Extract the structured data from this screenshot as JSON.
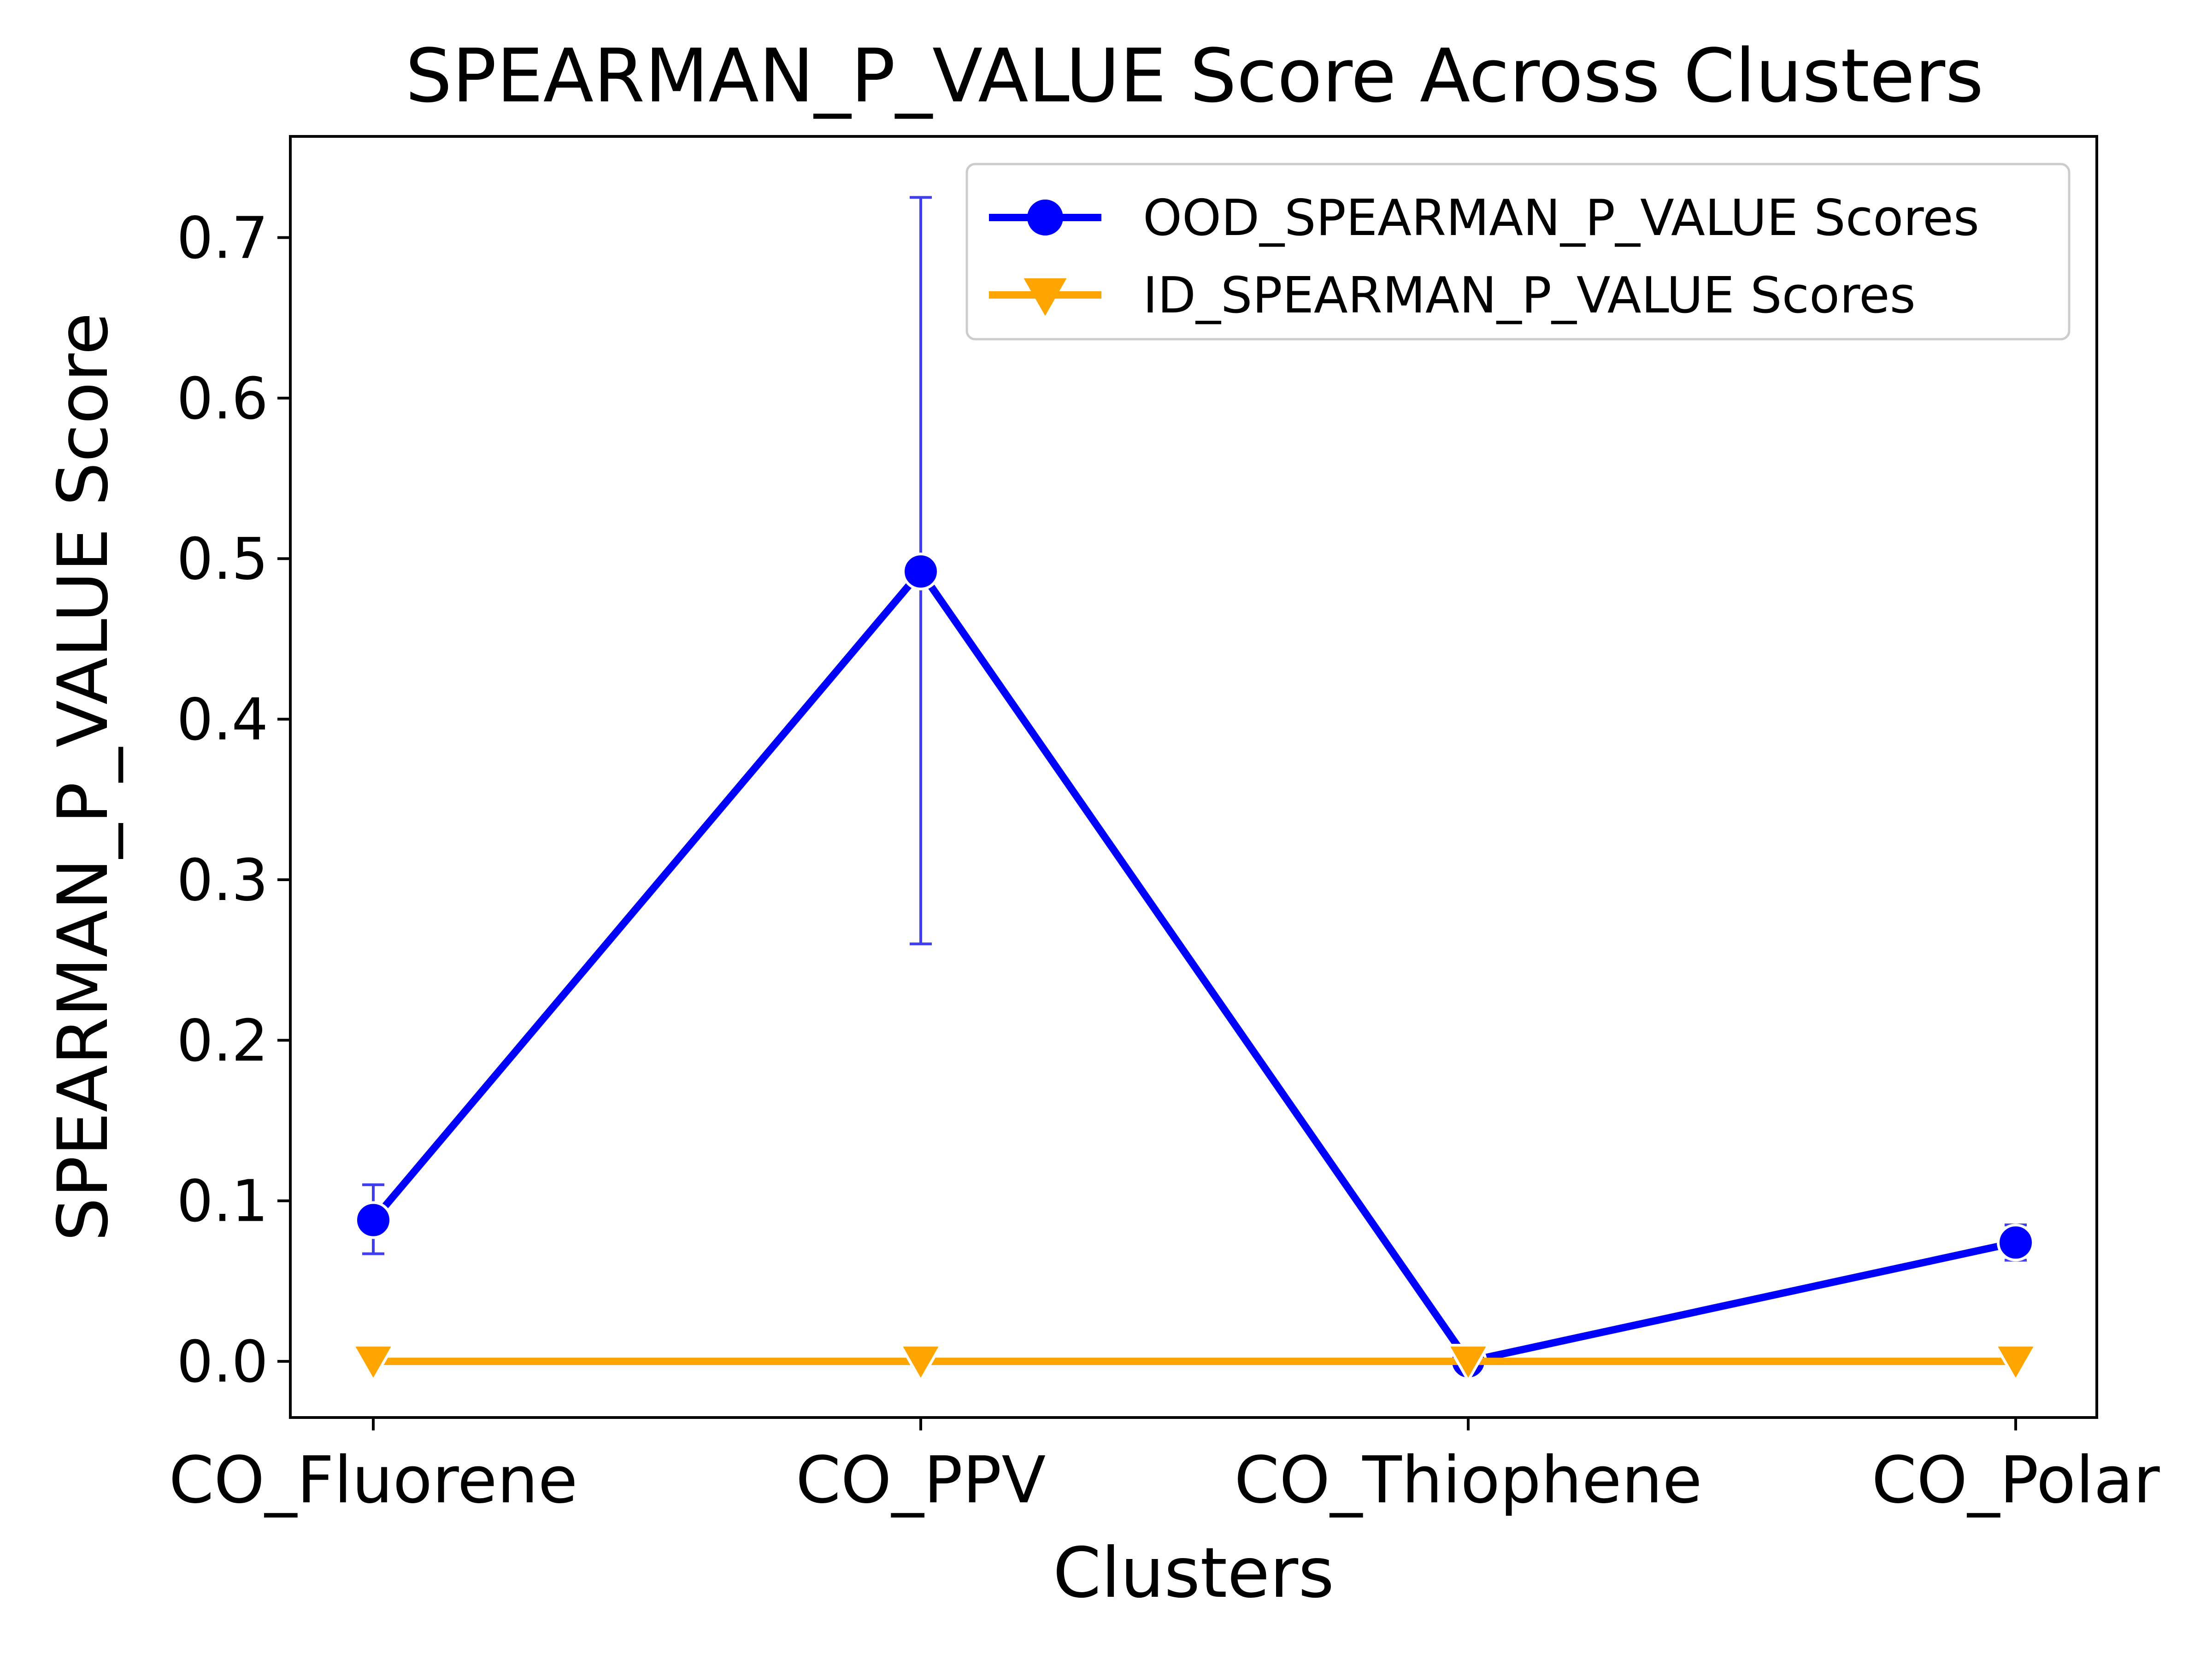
{
  "chart_data": {
    "type": "line",
    "title": "SPEARMAN_P_VALUE Score Across Clusters",
    "xlabel": "Clusters",
    "ylabel": "SPEARMAN_P_VALUE Score",
    "categories": [
      "CO_Fluorene",
      "CO_PPV",
      "CO_Thiophene",
      "CO_Polar"
    ],
    "ylim": [
      -0.035,
      0.763
    ],
    "yticks": [
      "0.0",
      "0.1",
      "0.2",
      "0.3",
      "0.4",
      "0.5",
      "0.6",
      "0.7"
    ],
    "grid": false,
    "legend_position": "top-right",
    "series": [
      {
        "name": "OOD_SPEARMAN_P_VALUE Scores",
        "color": "#0000ff",
        "marker": "circle",
        "values": [
          0.088,
          0.492,
          0.0,
          0.074
        ],
        "error_low": [
          0.067,
          0.26,
          0.0,
          0.063
        ],
        "error_high": [
          0.11,
          0.725,
          0.0,
          0.085
        ]
      },
      {
        "name": "ID_SPEARMAN_P_VALUE Scores",
        "color": "#ffa500",
        "marker": "triangle-down",
        "values": [
          0.0,
          0.0,
          0.0,
          0.0
        ]
      }
    ]
  }
}
